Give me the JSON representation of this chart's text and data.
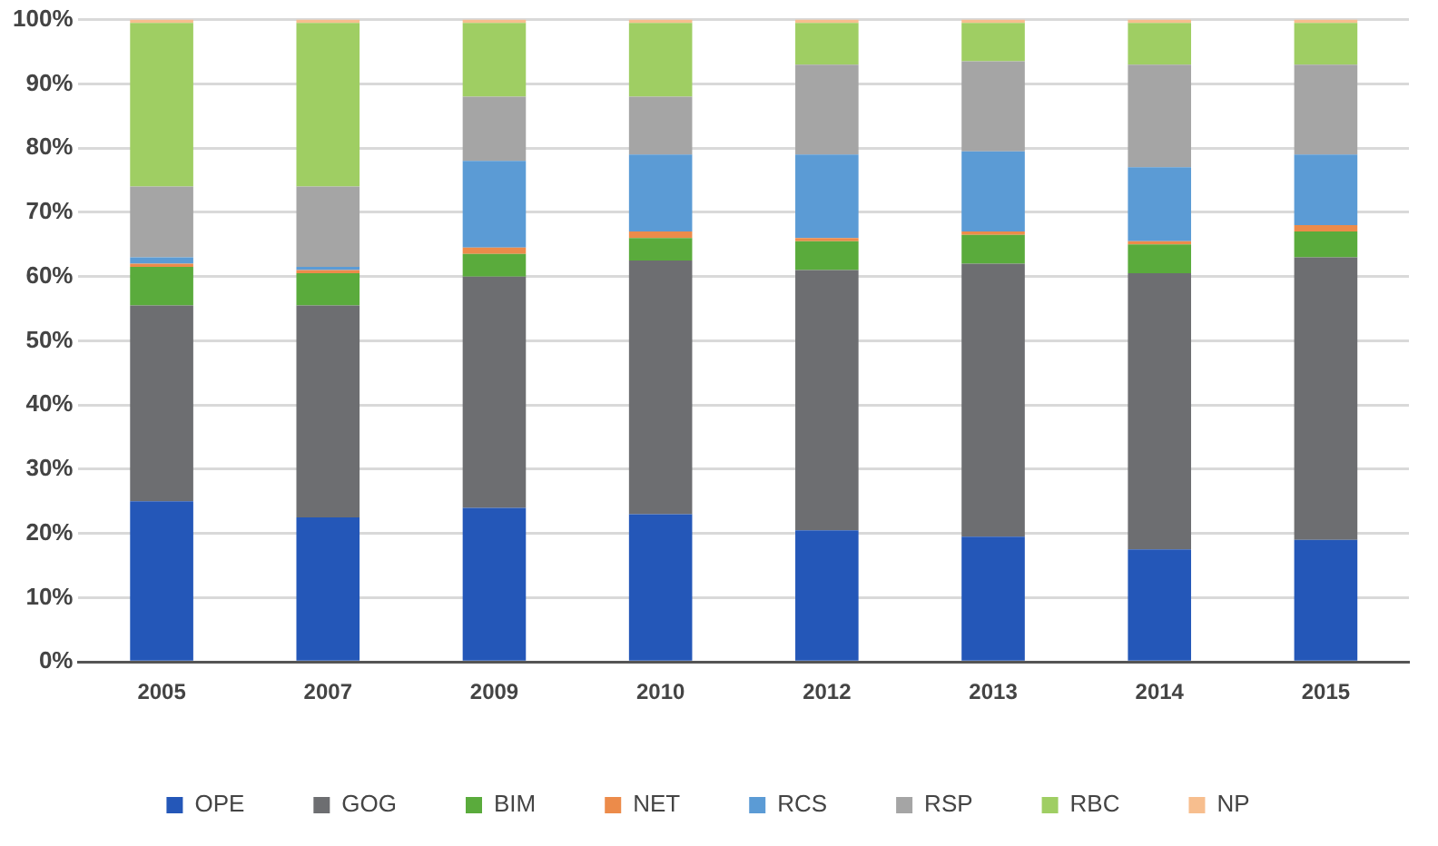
{
  "chart_data": {
    "type": "bar",
    "stacked": true,
    "categories": [
      "2005",
      "2007",
      "2009",
      "2010",
      "2012",
      "2013",
      "2014",
      "2015"
    ],
    "series": [
      {
        "name": "OPE",
        "color": "#2457b8",
        "values": [
          25,
          22.5,
          24,
          23,
          20.5,
          19.5,
          17.5,
          19
        ]
      },
      {
        "name": "GOG",
        "color": "#6d6e71",
        "values": [
          30.5,
          33,
          36,
          39.5,
          40.5,
          42.5,
          43,
          44
        ]
      },
      {
        "name": "BIM",
        "color": "#5aab3c",
        "values": [
          6,
          5,
          3.5,
          3.5,
          4.5,
          4.5,
          4.5,
          4
        ]
      },
      {
        "name": "NET",
        "color": "#ec8b4a",
        "values": [
          0.5,
          0.5,
          1,
          1,
          0.5,
          0.5,
          0.5,
          1
        ]
      },
      {
        "name": "RCS",
        "color": "#5b9bd5",
        "values": [
          1,
          0.5,
          13.5,
          12,
          13,
          12.5,
          11.5,
          11
        ]
      },
      {
        "name": "RSP",
        "color": "#a5a5a5",
        "values": [
          11,
          12.5,
          10,
          9,
          14,
          14,
          16,
          14
        ]
      },
      {
        "name": "RBC",
        "color": "#9fce63",
        "values": [
          25.5,
          25.5,
          11.5,
          11.5,
          6.5,
          6,
          6.5,
          6.5
        ]
      },
      {
        "name": "NP",
        "color": "#f7be8e",
        "values": [
          0.5,
          0.5,
          0.5,
          0.5,
          0.5,
          0.5,
          0.5,
          0.5
        ]
      }
    ],
    "ylim": [
      0,
      100
    ],
    "yticks": [
      {
        "value": 0,
        "label": "0%"
      },
      {
        "value": 10,
        "label": "10%"
      },
      {
        "value": 20,
        "label": "20%"
      },
      {
        "value": 30,
        "label": "30%"
      },
      {
        "value": 40,
        "label": "40%"
      },
      {
        "value": 50,
        "label": "50%"
      },
      {
        "value": 60,
        "label": "60%"
      },
      {
        "value": 70,
        "label": "70%"
      },
      {
        "value": 80,
        "label": "80%"
      },
      {
        "value": 90,
        "label": "90%"
      },
      {
        "value": 100,
        "label": "100%"
      }
    ],
    "grid": "y",
    "legend": "bottom"
  }
}
